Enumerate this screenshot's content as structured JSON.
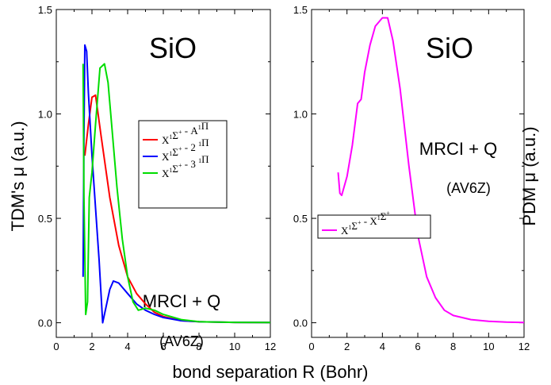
{
  "chart_data": [
    {
      "type": "line",
      "title": "SiO",
      "annotation": {
        "method": "MRCI + Q",
        "basis": "(AV6Z)"
      },
      "ylabel": "TDM's  μ (a.u.)",
      "xlim": [
        0,
        12
      ],
      "ylim": [
        -0.07,
        1.5
      ],
      "xticks": [
        0,
        2,
        4,
        6,
        8,
        10,
        12
      ],
      "xtick_labels": [
        "0",
        "2",
        "4",
        "6",
        "8",
        "10",
        "12"
      ],
      "yticks": [
        0.0,
        0.5,
        1.0,
        1.5
      ],
      "ytick_labels": [
        "0.0",
        "0.5",
        "1.0",
        "1.5"
      ],
      "grid": false,
      "legend_position": "right-middle",
      "series": [
        {
          "name": "X¹Σ⁺ - A¹Π",
          "legend": {
            "l1": "X",
            "s1": "1",
            "l2": "Σ",
            "s2": "+",
            "l3": " - A",
            "s3": "1",
            "l4": "Π"
          },
          "color": "#ff0000",
          "x": [
            1.6,
            1.8,
            2.0,
            2.2,
            2.5,
            3.0,
            3.5,
            4.0,
            4.5,
            5.0,
            5.5,
            6.0,
            7.0,
            8.0,
            10.0,
            12.0
          ],
          "y": [
            0.8,
            0.95,
            1.08,
            1.09,
            0.9,
            0.6,
            0.37,
            0.22,
            0.14,
            0.09,
            0.05,
            0.03,
            0.01,
            0.005,
            0.002,
            0.001
          ]
        },
        {
          "name": "X¹Σ⁺ - 2 ¹Π",
          "legend": {
            "l1": "X",
            "s1": "1",
            "l2": "Σ",
            "s2": "+",
            "l3": " - 2 ",
            "s3": "1",
            "l4": "Π"
          },
          "color": "#0000ff",
          "x": [
            1.5,
            1.55,
            1.6,
            1.7,
            1.8,
            2.0,
            2.2,
            2.4,
            2.6,
            2.8,
            3.0,
            3.2,
            3.5,
            4.0,
            4.5,
            5.0,
            5.5,
            6.0,
            7.0,
            8.0,
            10.0,
            12.0
          ],
          "y": [
            0.22,
            0.9,
            1.33,
            1.3,
            1.1,
            0.8,
            0.55,
            0.3,
            0.0,
            0.08,
            0.16,
            0.2,
            0.19,
            0.14,
            0.09,
            0.06,
            0.04,
            0.025,
            0.01,
            0.005,
            0.002,
            0.001
          ]
        },
        {
          "name": "X¹Σ⁺ - 3 ¹Π",
          "legend": {
            "l1": "X",
            "s1": "1",
            "l2": "Σ",
            "s2": "+",
            "l3": " - 3 ",
            "s3": "1",
            "l4": "Π"
          },
          "color": "#00dd00",
          "x": [
            1.5,
            1.55,
            1.65,
            1.75,
            1.85,
            2.0,
            2.2,
            2.45,
            2.7,
            2.9,
            3.1,
            3.4,
            3.7,
            4.0,
            4.3,
            4.6,
            5.0,
            5.5,
            6.0,
            7.0,
            8.0,
            10.0,
            12.0
          ],
          "y": [
            1.24,
            0.6,
            0.04,
            0.1,
            0.6,
            0.72,
            0.95,
            1.22,
            1.24,
            1.15,
            0.95,
            0.65,
            0.4,
            0.22,
            0.1,
            0.06,
            0.07,
            0.06,
            0.04,
            0.015,
            0.005,
            0.002,
            0.001
          ]
        }
      ]
    },
    {
      "type": "line",
      "title": "SiO",
      "annotation": {
        "method": "MRCI + Q",
        "basis": "(AV6Z)"
      },
      "ylabel": "PDM  μ (a.u.)",
      "xlim": [
        0,
        12
      ],
      "ylim": [
        -0.07,
        1.5
      ],
      "xticks": [
        0,
        2,
        4,
        6,
        8,
        10,
        12
      ],
      "xtick_labels": [
        "0",
        "2",
        "4",
        "6",
        "8",
        "10",
        "12"
      ],
      "yticks": [
        0.0,
        0.5,
        1.0,
        1.5
      ],
      "ytick_labels": [
        "0.0",
        "0.5",
        "1.0",
        "1.5"
      ],
      "grid": false,
      "legend_position": "lower-left",
      "series": [
        {
          "name": "X¹Σ⁺ - X¹Σ⁺",
          "legend": {
            "l1": "X",
            "s1": "1",
            "l2": "Σ",
            "s2": "+",
            "l3": " - X",
            "s3": "1",
            "l4": "Σ",
            "s4": "+"
          },
          "color": "#ff00ff",
          "x": [
            1.5,
            1.6,
            1.7,
            2.0,
            2.3,
            2.6,
            2.8,
            3.0,
            3.3,
            3.6,
            4.0,
            4.3,
            4.6,
            5.0,
            5.5,
            6.0,
            6.5,
            7.0,
            7.5,
            8.0,
            9.0,
            10.0,
            11.0,
            12.0
          ],
          "y": [
            0.72,
            0.62,
            0.61,
            0.7,
            0.85,
            1.05,
            1.07,
            1.2,
            1.33,
            1.42,
            1.46,
            1.46,
            1.35,
            1.12,
            0.75,
            0.42,
            0.22,
            0.12,
            0.06,
            0.035,
            0.015,
            0.007,
            0.003,
            0.001
          ]
        }
      ]
    }
  ],
  "shared_xlabel": "bond separation R (Bohr)"
}
